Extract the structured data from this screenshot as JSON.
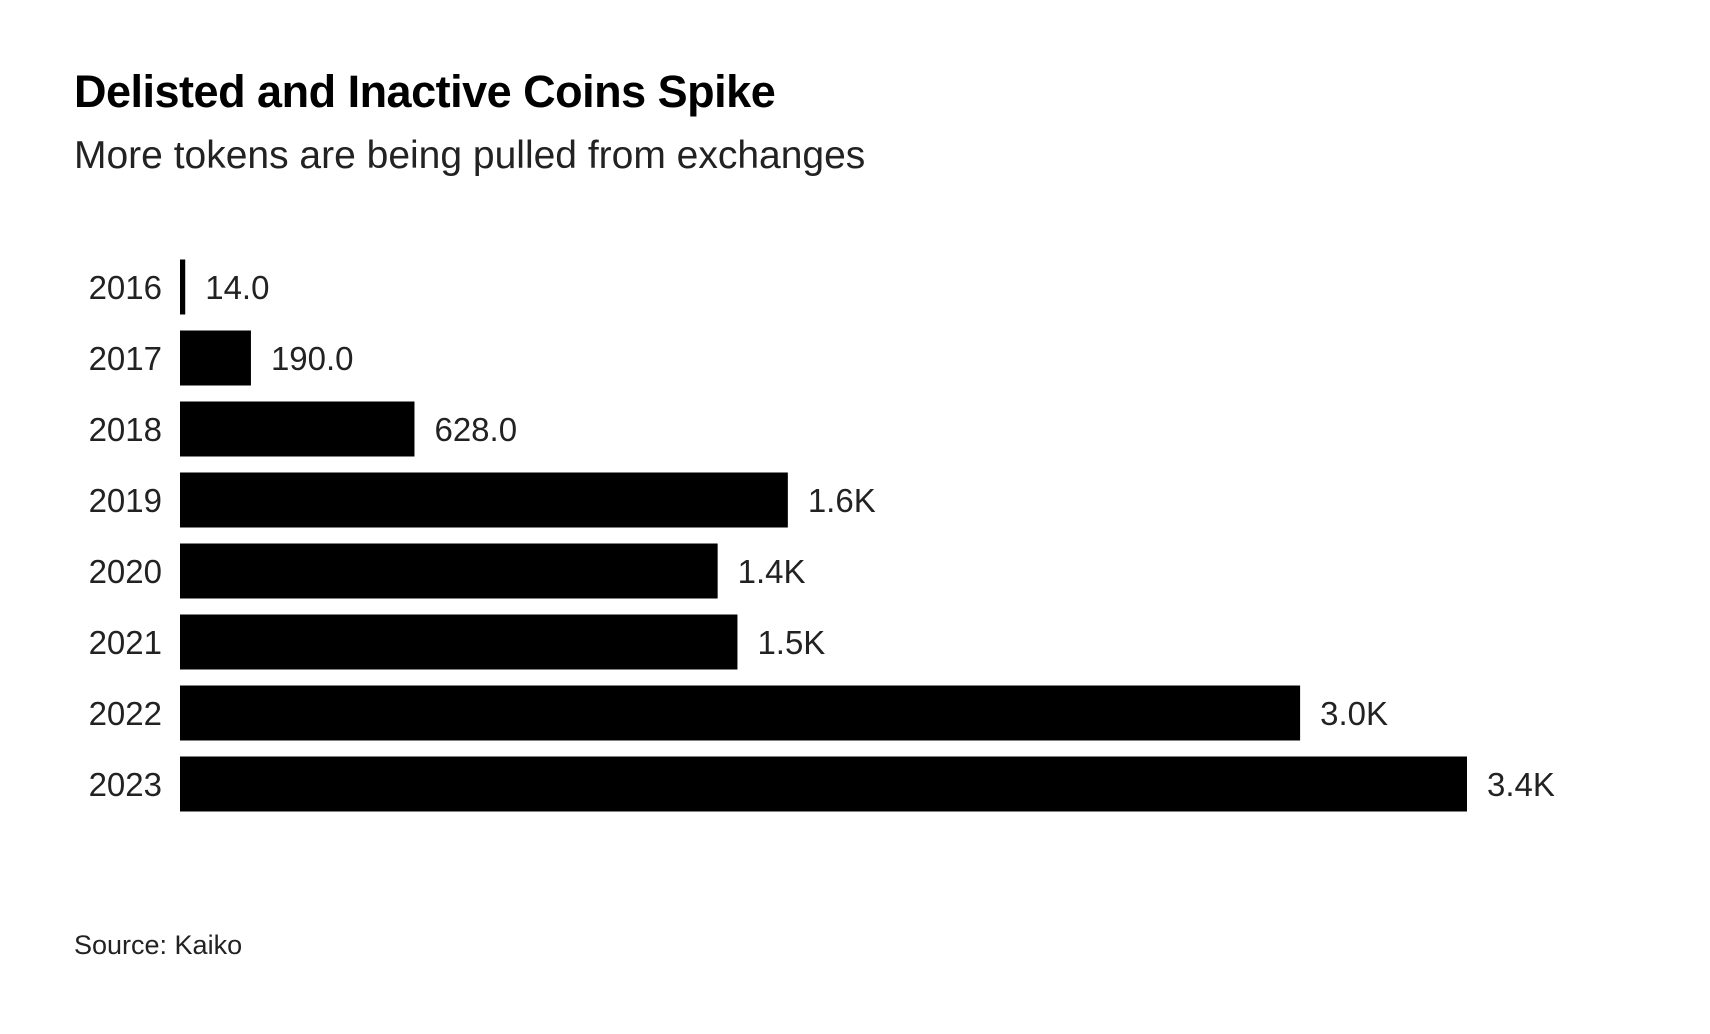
{
  "chart_data": {
    "type": "bar",
    "orientation": "horizontal",
    "title": "Delisted and Inactive Coins Spike",
    "subtitle": "More tokens are being pulled from exchanges",
    "categories": [
      "2016",
      "2017",
      "2018",
      "2019",
      "2020",
      "2021",
      "2022",
      "2023"
    ],
    "values": [
      14,
      190,
      628,
      1628,
      1440,
      1493,
      3000,
      3447
    ],
    "value_labels": [
      "14.0",
      "190.0",
      "628.0",
      "1.6K",
      "1.4K",
      "1.5K",
      "3.0K",
      "3.4K"
    ],
    "xlabel": "",
    "ylabel": "",
    "xlim": [
      0,
      3447
    ],
    "grid": false,
    "bar_color": "#000000",
    "source": "Source: Kaiko"
  }
}
